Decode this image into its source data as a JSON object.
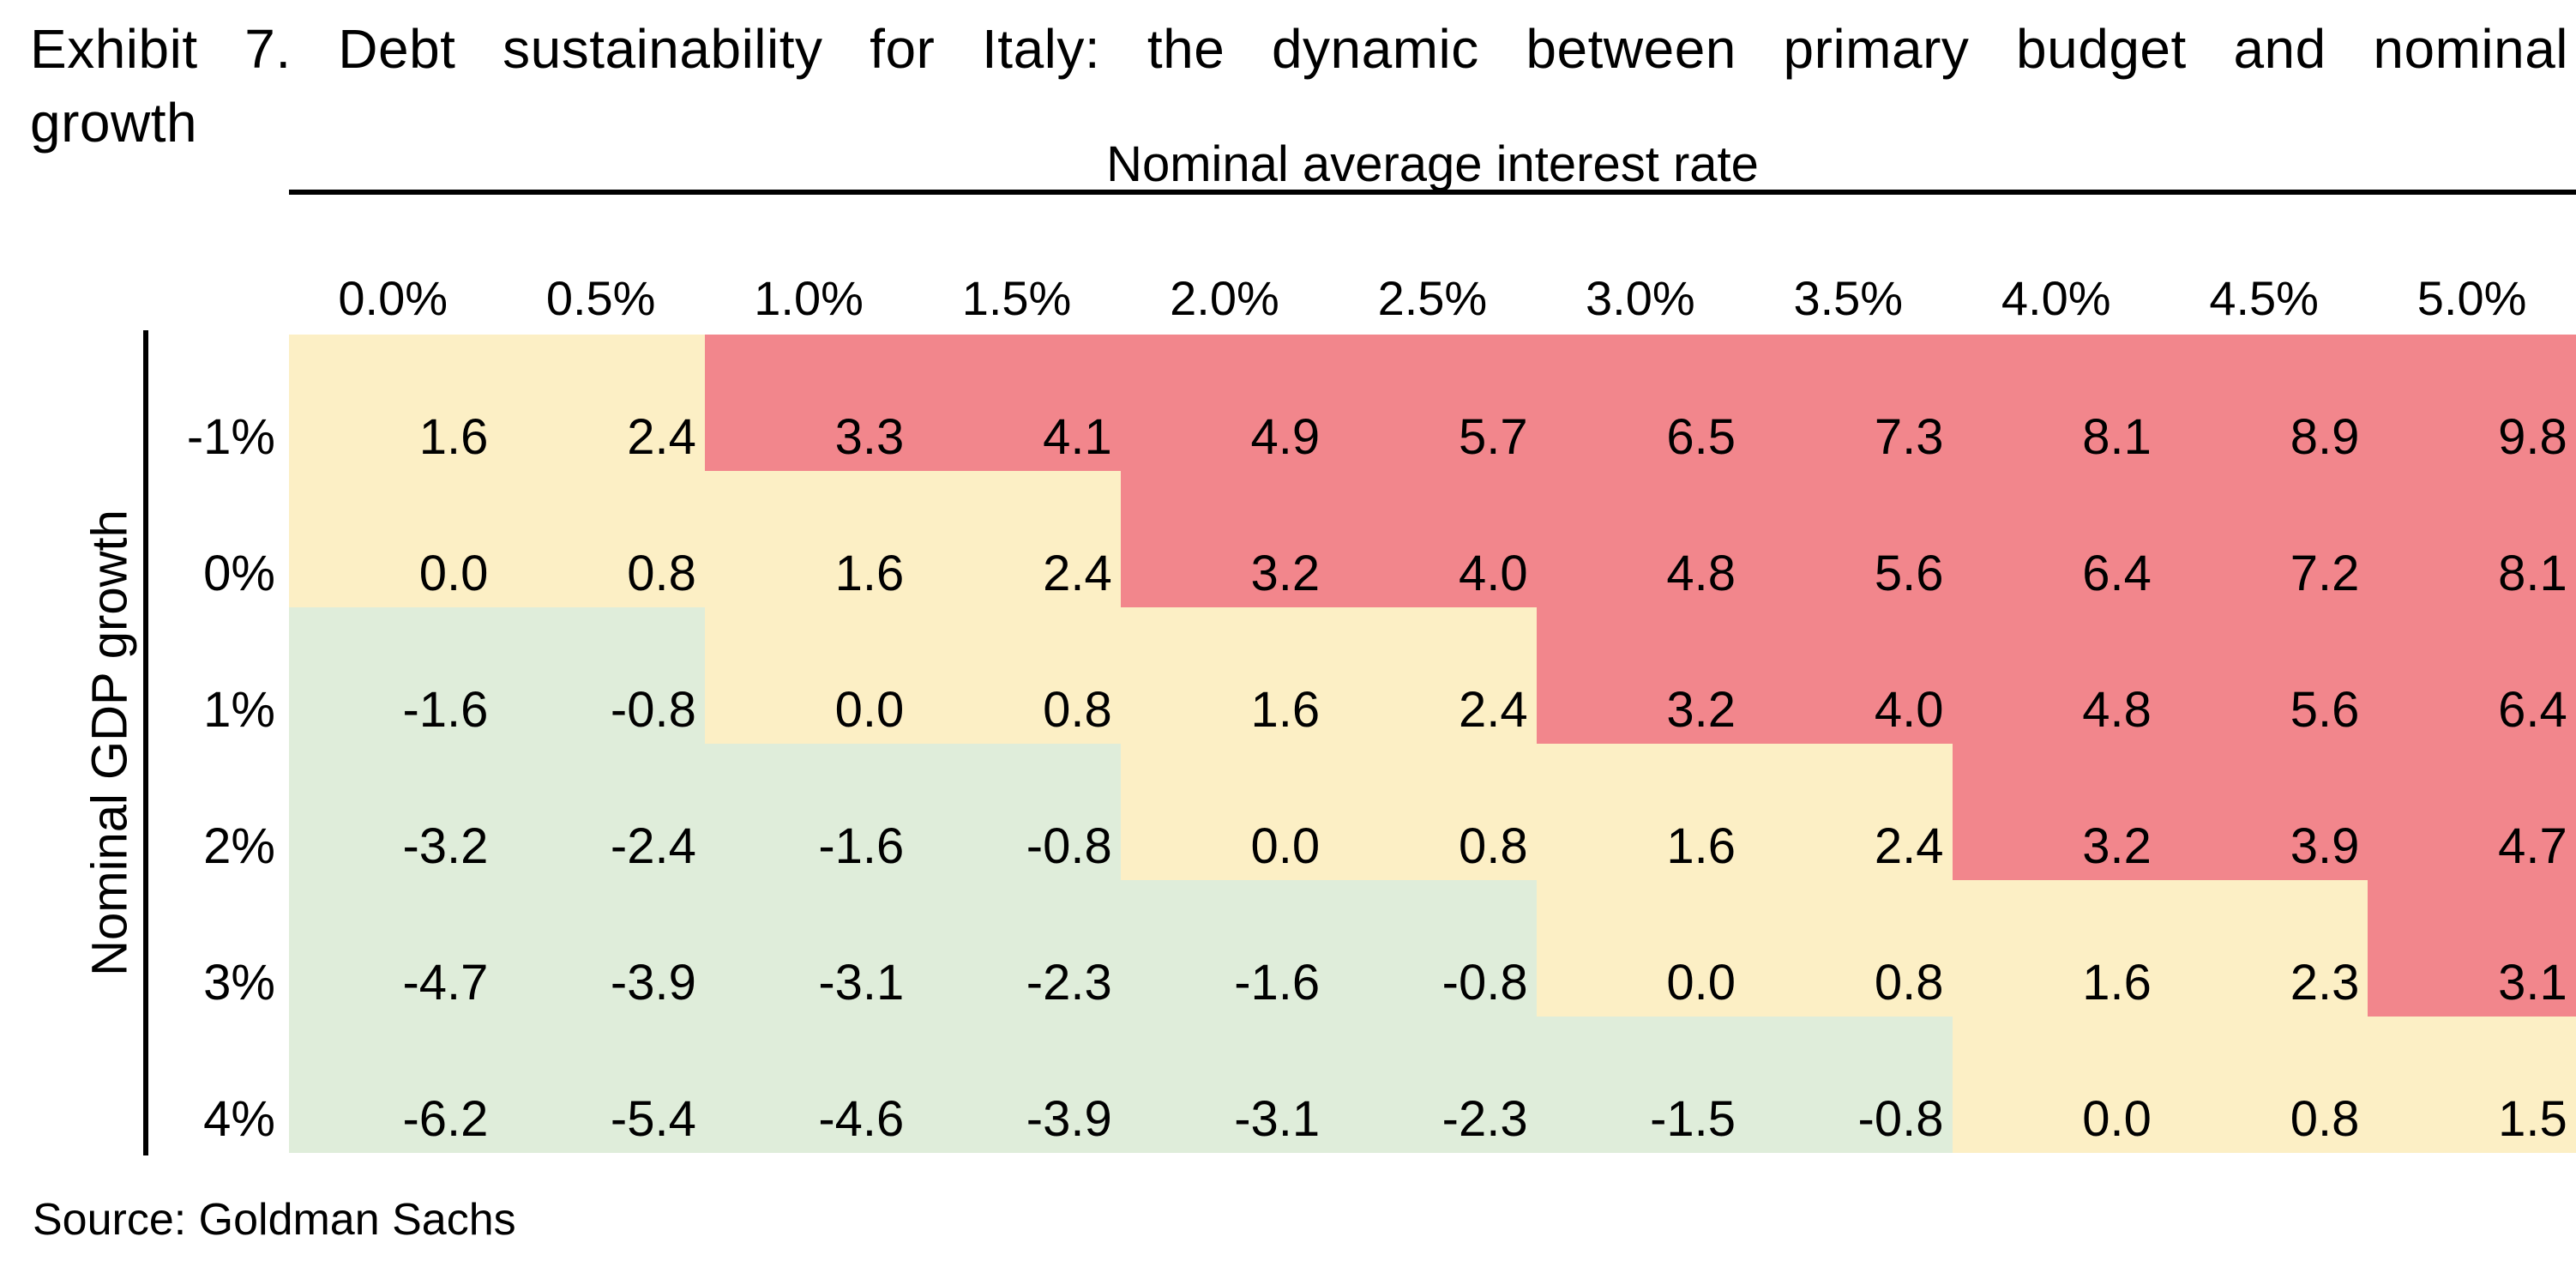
{
  "title": {
    "line1": "Exhibit 7. Debt sustainability for Italy: the dynamic between primary budget and nominal",
    "line2": "growth"
  },
  "source": "Source: Goldman Sachs",
  "chart_data": {
    "type": "heatmap",
    "title": "Exhibit 7. Debt sustainability for Italy: the dynamic between primary budget and nominal growth",
    "xlabel": "Nominal average interest rate",
    "ylabel": "Nominal GDP growth",
    "columns": [
      "0.0%",
      "0.5%",
      "1.0%",
      "1.5%",
      "2.0%",
      "2.5%",
      "3.0%",
      "3.5%",
      "4.0%",
      "4.5%",
      "5.0%"
    ],
    "rows": [
      "-1%",
      "0%",
      "1%",
      "2%",
      "3%",
      "4%"
    ],
    "values": [
      [
        "1.6",
        "2.4",
        "3.3",
        "4.1",
        "4.9",
        "5.7",
        "6.5",
        "7.3",
        "8.1",
        "8.9",
        "9.8"
      ],
      [
        "0.0",
        "0.8",
        "1.6",
        "2.4",
        "3.2",
        "4.0",
        "4.8",
        "5.6",
        "6.4",
        "7.2",
        "8.1"
      ],
      [
        "-1.6",
        "-0.8",
        "0.0",
        "0.8",
        "1.6",
        "2.4",
        "3.2",
        "4.0",
        "4.8",
        "5.6",
        "6.4"
      ],
      [
        "-3.2",
        "-2.4",
        "-1.6",
        "-0.8",
        "0.0",
        "0.8",
        "1.6",
        "2.4",
        "3.2",
        "3.9",
        "4.7"
      ],
      [
        "-4.7",
        "-3.9",
        "-3.1",
        "-2.3",
        "-1.6",
        "-0.8",
        "0.0",
        "0.8",
        "1.6",
        "2.3",
        "3.1"
      ],
      [
        "-6.2",
        "-5.4",
        "-4.6",
        "-3.9",
        "-3.1",
        "-2.3",
        "-1.5",
        "-0.8",
        "0.0",
        "0.8",
        "1.5"
      ]
    ],
    "cell_colors": [
      [
        "yellow",
        "yellow",
        "red",
        "red",
        "red",
        "red",
        "red",
        "red",
        "red",
        "red",
        "red"
      ],
      [
        "yellow",
        "yellow",
        "yellow",
        "yellow",
        "red",
        "red",
        "red",
        "red",
        "red",
        "red",
        "red"
      ],
      [
        "green",
        "green",
        "yellow",
        "yellow",
        "yellow",
        "yellow",
        "red",
        "red",
        "red",
        "red",
        "red"
      ],
      [
        "green",
        "green",
        "green",
        "green",
        "yellow",
        "yellow",
        "yellow",
        "yellow",
        "red",
        "red",
        "red"
      ],
      [
        "green",
        "green",
        "green",
        "green",
        "green",
        "green",
        "yellow",
        "yellow",
        "yellow",
        "yellow",
        "red"
      ],
      [
        "green",
        "green",
        "green",
        "green",
        "green",
        "green",
        "green",
        "green",
        "yellow",
        "yellow",
        "yellow"
      ]
    ],
    "palette": {
      "green": "#DFEDDA",
      "yellow": "#FCEFC5",
      "red": "#F2868C"
    },
    "text_color": "#000000",
    "legend_position": "none",
    "grid": false
  }
}
